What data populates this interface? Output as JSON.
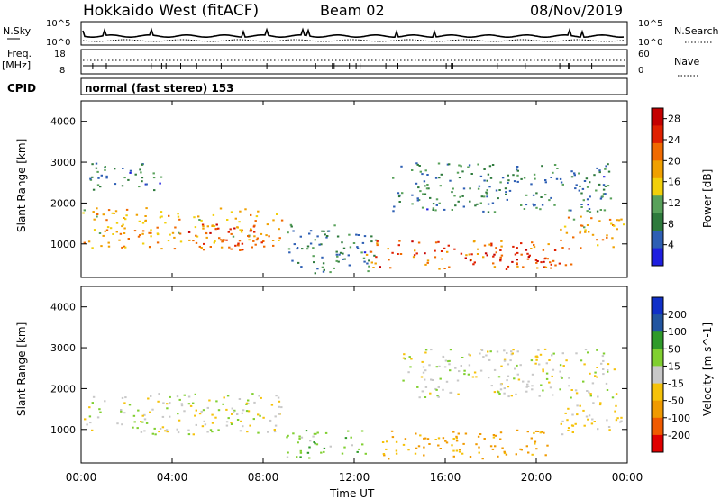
{
  "header": {
    "station": "Hokkaido West (fitACF)",
    "beam": "Beam 02",
    "date": "08/Nov/2019"
  },
  "noise_panel": {
    "left_label": "N.Sky",
    "left_ticks": [
      "10^5",
      "10^0"
    ],
    "right_ticks": [
      "10^5",
      "10^0"
    ],
    "right_label": "N.Search"
  },
  "freq_panel": {
    "left_label_1": "Freq.",
    "left_label_2": "[MHz]",
    "left_ticks": [
      "18",
      "8"
    ],
    "right_ticks": [
      "60",
      "0"
    ],
    "right_label": "Nave"
  },
  "cpid": {
    "label": "CPID",
    "text": "normal (fast stereo) 153"
  },
  "colors": {
    "power": [
      "#1f1fe0",
      "#2e5fb4",
      "#2e7a3c",
      "#58a15a",
      "#f2d00a",
      "#f0a000",
      "#f06a00",
      "#e02000",
      "#c40000"
    ],
    "velocity": [
      "#e00000",
      "#f05a00",
      "#f09a00",
      "#f5c20a",
      "#c8c8c8",
      "#80cf30",
      "#2f9a2a",
      "#2255a0",
      "#1030c8"
    ]
  },
  "chart_data": [
    {
      "type": "heatmap",
      "name": "Power",
      "ylabel": "Slant Range [km]",
      "yticks": [
        "4000",
        "3000",
        "2000",
        "1000"
      ],
      "ylim": [
        180,
        4500
      ],
      "xlim": [
        "00:00",
        "24:00"
      ],
      "colorbar_label": "Power [dB]",
      "colorbar_ticks": [
        "28",
        "24",
        "20",
        "16",
        "12",
        "8",
        "4"
      ],
      "colorbar_range": [
        0,
        30
      ],
      "regions": [
        {
          "t0": 0.0,
          "t1": 8.8,
          "r0": 900,
          "r1": 1900,
          "level": 18
        },
        {
          "t0": 4.5,
          "t1": 8.5,
          "r0": 850,
          "r1": 1500,
          "level": 24
        },
        {
          "t0": 0.0,
          "t1": 3.5,
          "r0": 2300,
          "r1": 3000,
          "level": 8
        },
        {
          "t0": 9.0,
          "t1": 13.0,
          "r0": 300,
          "r1": 1500,
          "level": 8
        },
        {
          "t0": 12.5,
          "t1": 21.5,
          "r0": 400,
          "r1": 1100,
          "level": 22
        },
        {
          "t0": 16.5,
          "t1": 20.5,
          "r0": 550,
          "r1": 800,
          "level": 28
        },
        {
          "t0": 13.5,
          "t1": 23.5,
          "r0": 1800,
          "r1": 3000,
          "level": 8
        },
        {
          "t0": 21.0,
          "t1": 24.0,
          "r0": 900,
          "r1": 1700,
          "level": 18
        }
      ]
    },
    {
      "type": "heatmap",
      "name": "Velocity",
      "ylabel": "Slant Range [km]",
      "yticks": [
        "4000",
        "3000",
        "2000",
        "1000"
      ],
      "ylim": [
        180,
        4500
      ],
      "xlim": [
        "00:00",
        "24:00"
      ],
      "xlabel": "Time UT",
      "xticks": [
        "00:00",
        "04:00",
        "08:00",
        "12:00",
        "16:00",
        "20:00",
        "00:00"
      ],
      "colorbar_label": "Velocity [m s^-1]",
      "colorbar_ticks": [
        "200",
        "100",
        "50",
        "15",
        "-15",
        "-50",
        "-100",
        "-200"
      ],
      "regions": [
        {
          "t0": 0.0,
          "t1": 8.8,
          "r0": 900,
          "r1": 1900,
          "velocity": 0
        },
        {
          "t0": 9.0,
          "t1": 12.5,
          "r0": 300,
          "r1": 1000,
          "velocity": 40
        },
        {
          "t0": 13.0,
          "t1": 20.5,
          "r0": 300,
          "r1": 1000,
          "velocity": -60
        },
        {
          "t0": 14.0,
          "t1": 23.5,
          "r0": 1800,
          "r1": 3000,
          "velocity": 0
        },
        {
          "t0": 21.0,
          "t1": 24.0,
          "r0": 900,
          "r1": 1700,
          "velocity": -20
        }
      ]
    }
  ]
}
